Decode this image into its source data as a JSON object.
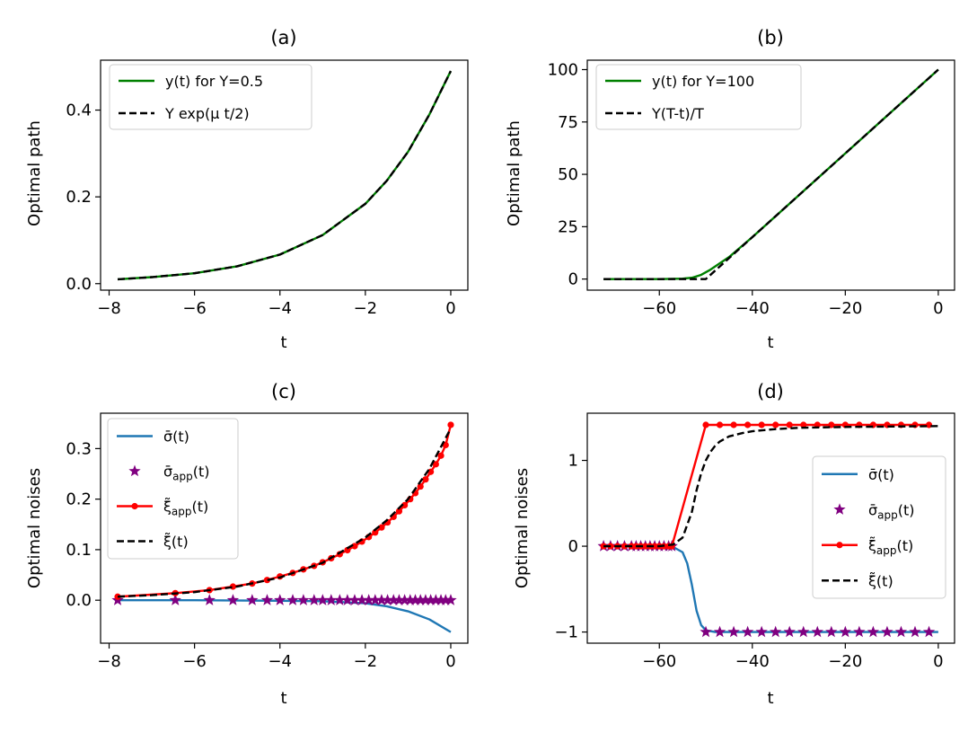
{
  "chart_data": [
    {
      "id": "a",
      "type": "line",
      "title": "(a)",
      "xlabel": "t",
      "ylabel": "Optimal path",
      "xlim": [
        -8.2,
        0.4
      ],
      "ylim": [
        -0.015,
        0.515
      ],
      "xticks": [
        -8,
        -6,
        -4,
        -2,
        0
      ],
      "xtick_labels": [
        "−8",
        "−6",
        "−4",
        "−2",
        "0"
      ],
      "yticks": [
        0,
        0.2,
        0.4
      ],
      "ytick_labels": [
        "0.0",
        "0.2",
        "0.4"
      ],
      "legend": "top-left",
      "series": [
        {
          "name": "y(t) for Y=0.5",
          "color": "#008000",
          "dash": "solid",
          "x": [
            -7.8,
            -7.0,
            -6.0,
            -5.0,
            -4.0,
            -3.0,
            -2.0,
            -1.5,
            -1.0,
            -0.5,
            0.0
          ],
          "y": [
            0.01,
            0.015,
            0.024,
            0.04,
            0.067,
            0.112,
            0.184,
            0.237,
            0.304,
            0.39,
            0.49
          ]
        },
        {
          "name": "Y exp(μ t/2)",
          "color": "#000000",
          "dash": "dashed",
          "x": [
            -7.8,
            -7.0,
            -6.0,
            -5.0,
            -4.0,
            -3.0,
            -2.0,
            -1.5,
            -1.0,
            -0.5,
            0.0
          ],
          "y": [
            0.01,
            0.015,
            0.024,
            0.04,
            0.067,
            0.112,
            0.184,
            0.237,
            0.304,
            0.39,
            0.49
          ]
        }
      ]
    },
    {
      "id": "b",
      "type": "line",
      "title": "(b)",
      "xlabel": "t",
      "ylabel": "Optimal path",
      "xlim": [
        -75.5,
        3.5
      ],
      "ylim": [
        -5.3,
        104.5
      ],
      "xticks": [
        -60,
        -40,
        -20,
        0
      ],
      "xtick_labels": [
        "−60",
        "−40",
        "−20",
        "0"
      ],
      "yticks": [
        0,
        25,
        50,
        75,
        100
      ],
      "ytick_labels": [
        "0",
        "25",
        "50",
        "75",
        "100"
      ],
      "legend": "top-left",
      "series": [
        {
          "name": "y(t) for Y=100",
          "color": "#008000",
          "dash": "solid",
          "x": [
            -72,
            -60,
            -55,
            -53,
            -51,
            -49,
            -47,
            -45,
            -40,
            -30,
            -20,
            -10,
            0
          ],
          "y": [
            0,
            0,
            0.2,
            0.6,
            2.0,
            4.5,
            7.5,
            10.5,
            20.0,
            40.0,
            60.0,
            80.0,
            100.0
          ]
        },
        {
          "name": "Y(T-t)/T",
          "color": "#000000",
          "dash": "dashed",
          "x": [
            -72,
            -55,
            -50,
            -40,
            -30,
            -20,
            -10,
            0
          ],
          "y": [
            0,
            0,
            0,
            20.0,
            40.0,
            60.0,
            80.0,
            100.0
          ]
        }
      ]
    },
    {
      "id": "c",
      "type": "line",
      "title": "(c)",
      "xlabel": "t",
      "ylabel": "Optimal noises",
      "xlim": [
        -8.2,
        0.4
      ],
      "ylim": [
        -0.085,
        0.37
      ],
      "xticks": [
        -8,
        -6,
        -4,
        -2,
        0
      ],
      "xtick_labels": [
        "−8",
        "−6",
        "−4",
        "−2",
        "0"
      ],
      "yticks": [
        0,
        0.1,
        0.2,
        0.3
      ],
      "ytick_labels": [
        "0.0",
        "0.1",
        "0.2",
        "0.3"
      ],
      "legend": "top-left",
      "series": [
        {
          "name": "σ̄(t)",
          "color": "#1f77b4",
          "marker": "none",
          "dash": "solid",
          "x": [
            -7.8,
            -6.0,
            -4.0,
            -3.0,
            -2.0,
            -1.5,
            -1.0,
            -0.5,
            0.0
          ],
          "y": [
            0,
            0,
            -0.001,
            -0.002,
            -0.006,
            -0.012,
            -0.022,
            -0.038,
            -0.063
          ]
        },
        {
          "name": "σ̄_app(t)",
          "color": "#800080",
          "marker": "star",
          "dash": "none",
          "x": [
            -7.8,
            -6.45,
            -5.65,
            -5.1,
            -4.65,
            -4.3,
            -4.0,
            -3.7,
            -3.45,
            -3.2,
            -3.0,
            -2.8,
            -2.6,
            -2.42,
            -2.25,
            -2.08,
            -1.92,
            -1.77,
            -1.62,
            -1.48,
            -1.34,
            -1.21,
            -1.08,
            -0.95,
            -0.83,
            -0.71,
            -0.59,
            -0.47,
            -0.35,
            -0.23,
            -0.12,
            0.0
          ],
          "y": [
            0,
            0,
            0,
            0,
            0,
            0,
            0,
            0,
            0,
            0,
            0,
            0,
            0,
            0,
            0,
            0,
            0,
            0,
            0,
            0,
            0,
            0,
            0,
            0,
            0,
            0,
            0,
            0,
            0,
            0,
            0,
            0
          ]
        },
        {
          "name": "ξ̃_app(t)",
          "color": "#ff0000",
          "marker": "dot",
          "dash": "solid",
          "x": [
            -7.8,
            -6.45,
            -5.65,
            -5.1,
            -4.65,
            -4.3,
            -4.0,
            -3.7,
            -3.45,
            -3.2,
            -3.0,
            -2.8,
            -2.6,
            -2.42,
            -2.25,
            -2.08,
            -1.92,
            -1.77,
            -1.62,
            -1.48,
            -1.34,
            -1.21,
            -1.08,
            -0.95,
            -0.83,
            -0.71,
            -0.59,
            -0.47,
            -0.35,
            -0.23,
            -0.12,
            0.0
          ],
          "y": [
            0.007,
            0.014,
            0.02,
            0.027,
            0.033,
            0.04,
            0.047,
            0.054,
            0.061,
            0.068,
            0.075,
            0.083,
            0.091,
            0.099,
            0.107,
            0.116,
            0.125,
            0.134,
            0.144,
            0.154,
            0.165,
            0.176,
            0.188,
            0.2,
            0.212,
            0.225,
            0.239,
            0.254,
            0.269,
            0.286,
            0.307,
            0.347
          ]
        },
        {
          "name": "ξ̃(t)",
          "color": "#000000",
          "marker": "none",
          "dash": "dashed",
          "x": [
            -7.8,
            -7.0,
            -6.0,
            -5.0,
            -4.0,
            -3.0,
            -2.0,
            -1.5,
            -1.0,
            -0.5,
            0.0
          ],
          "y": [
            0.007,
            0.01,
            0.016,
            0.027,
            0.045,
            0.074,
            0.124,
            0.158,
            0.2,
            0.26,
            0.34
          ]
        }
      ]
    },
    {
      "id": "d",
      "type": "line",
      "title": "(d)",
      "xlabel": "t",
      "ylabel": "Optimal noises",
      "xlim": [
        -75.5,
        3.5
      ],
      "ylim": [
        -1.13,
        1.55
      ],
      "xticks": [
        -60,
        -40,
        -20,
        0
      ],
      "xtick_labels": [
        "−60",
        "−40",
        "−20",
        "0"
      ],
      "yticks": [
        -1,
        0,
        1
      ],
      "ytick_labels": [
        "−1",
        "0",
        "1"
      ],
      "legend": "center-right",
      "series": [
        {
          "name": "σ̄(t)",
          "color": "#1f77b4",
          "marker": "none",
          "dash": "solid",
          "x": [
            -72,
            -60,
            -57,
            -55,
            -54,
            -53,
            -52,
            -51,
            -50,
            -48,
            -45,
            0
          ],
          "y": [
            0,
            0,
            -0.01,
            -0.07,
            -0.2,
            -0.45,
            -0.75,
            -0.92,
            -0.98,
            -1.0,
            -1.0,
            -1.0
          ]
        },
        {
          "name": "σ̄_app(t)",
          "color": "#800080",
          "marker": "star",
          "dash": "none",
          "x": [
            -72,
            -70.5,
            -69,
            -67.5,
            -66,
            -65,
            -64,
            -63,
            -62,
            -61,
            -60,
            -59,
            -58,
            -57.3,
            -50,
            -47,
            -44,
            -41,
            -38,
            -35,
            -32,
            -29,
            -26,
            -23,
            -20,
            -17,
            -14,
            -11,
            -8,
            -5,
            -2
          ],
          "y": [
            0,
            0,
            0,
            0,
            0,
            0,
            0,
            0,
            0,
            0,
            0,
            0,
            0,
            0,
            -1,
            -1,
            -1,
            -1,
            -1,
            -1,
            -1,
            -1,
            -1,
            -1,
            -1,
            -1,
            -1,
            -1,
            -1,
            -1,
            -1
          ]
        },
        {
          "name": "ξ̃_app(t)",
          "color": "#ff0000",
          "marker": "dot",
          "dash": "solid",
          "x": [
            -72,
            -70.5,
            -69,
            -67.5,
            -66,
            -65,
            -64,
            -63,
            -62,
            -61,
            -60,
            -59,
            -58,
            -57.3,
            -50,
            -47,
            -44,
            -41,
            -38,
            -35,
            -32,
            -29,
            -26,
            -23,
            -20,
            -17,
            -14,
            -11,
            -8,
            -5,
            -2
          ],
          "y": [
            0,
            0,
            0,
            0,
            0,
            0,
            0,
            0,
            0,
            0,
            0,
            0,
            0,
            0,
            1.414,
            1.414,
            1.414,
            1.414,
            1.414,
            1.414,
            1.414,
            1.414,
            1.414,
            1.414,
            1.414,
            1.414,
            1.414,
            1.414,
            1.414,
            1.414,
            1.414
          ]
        },
        {
          "name": "ξ̃(t)",
          "color": "#000000",
          "marker": "none",
          "dash": "dashed",
          "x": [
            -72,
            -60,
            -57,
            -55,
            -53,
            -52,
            -51,
            -50,
            -49,
            -48,
            -47,
            -45,
            -42,
            -40,
            -35,
            -30,
            -20,
            -10,
            0
          ],
          "y": [
            0,
            0,
            0.02,
            0.1,
            0.4,
            0.65,
            0.85,
            1.0,
            1.1,
            1.17,
            1.22,
            1.28,
            1.32,
            1.34,
            1.365,
            1.38,
            1.39,
            1.395,
            1.4
          ]
        }
      ]
    }
  ]
}
